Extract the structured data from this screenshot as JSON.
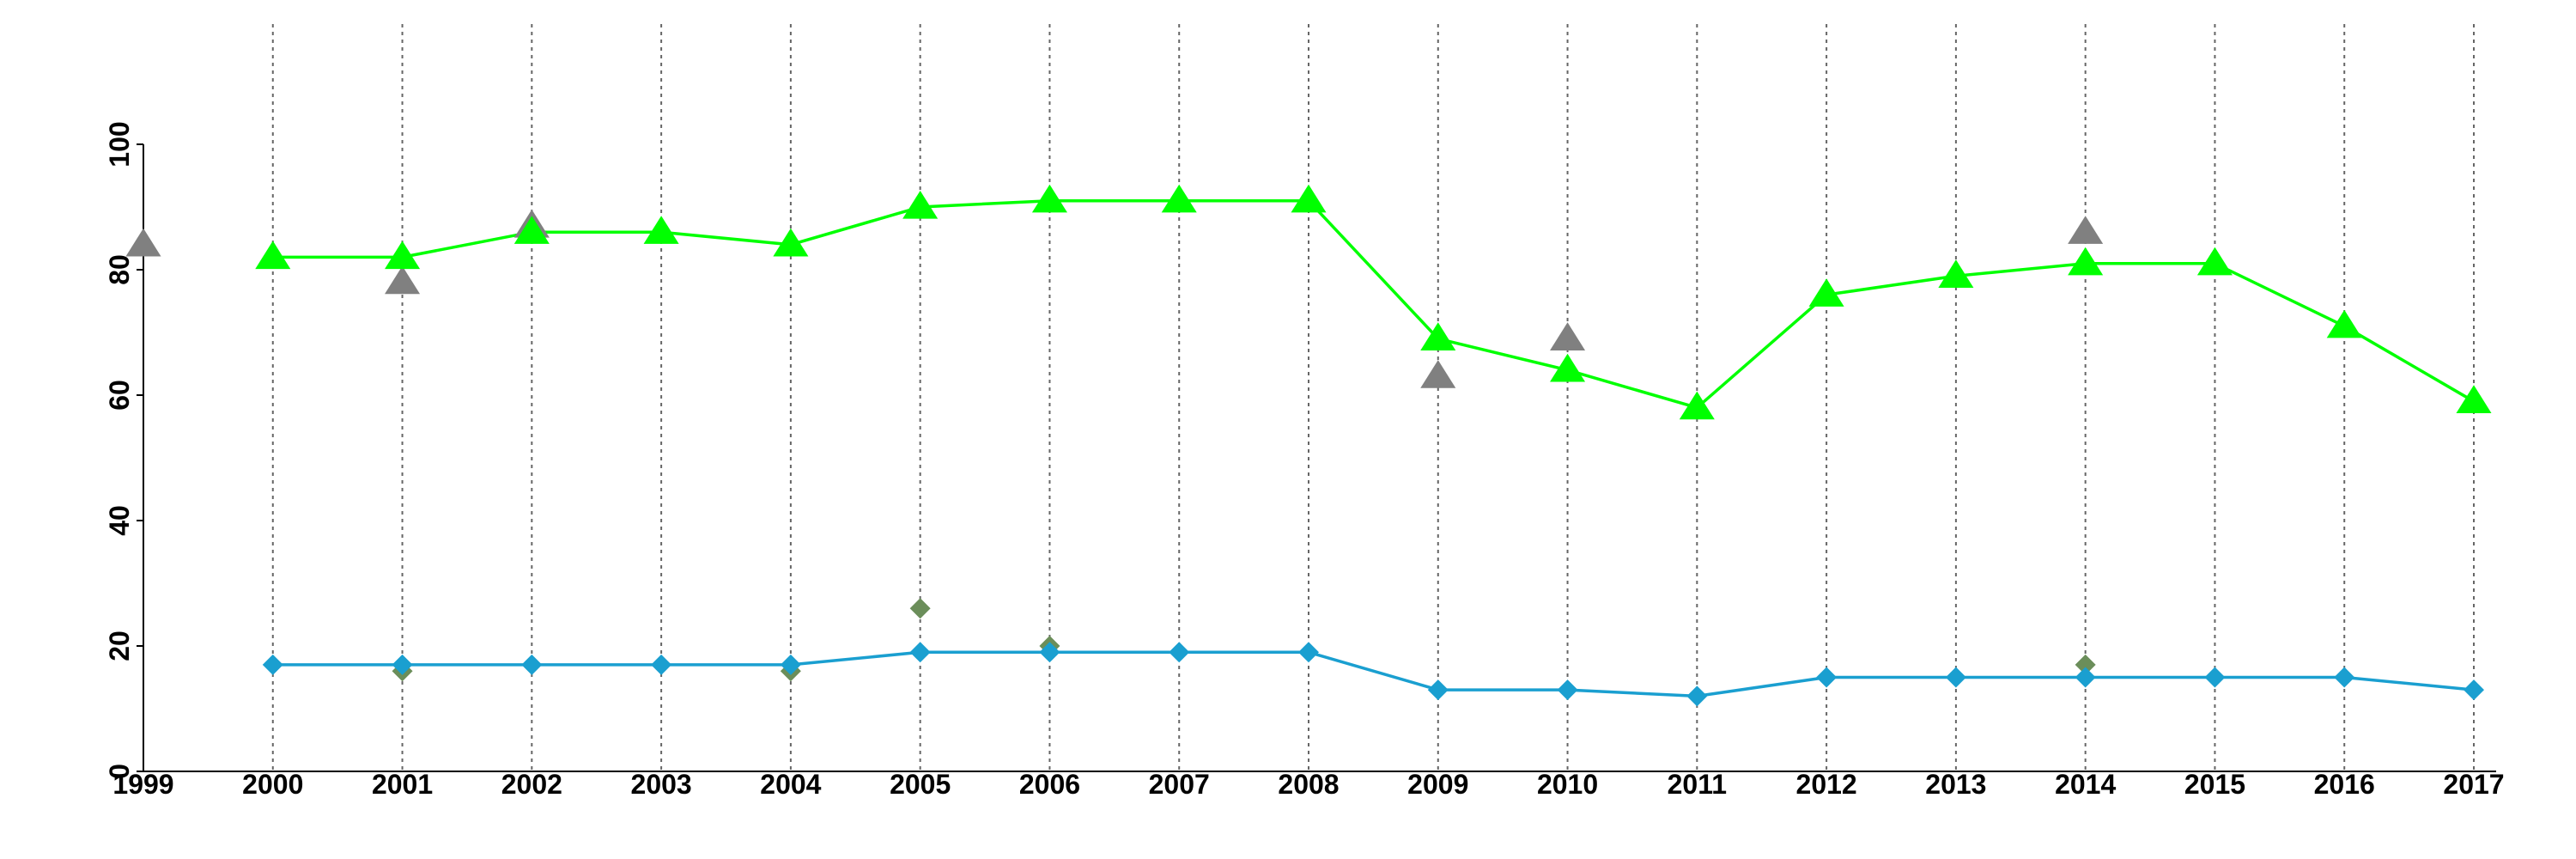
{
  "chart_data": {
    "type": "line",
    "title": "",
    "xlabel": "",
    "ylabel": "",
    "x": [
      2000,
      2001,
      2002,
      2003,
      2004,
      2005,
      2006,
      2007,
      2008,
      2009,
      2010,
      2011,
      2012,
      2013,
      2014,
      2015,
      2016,
      2017
    ],
    "xlim": [
      1999,
      2017
    ],
    "ylim": [
      0,
      100
    ],
    "x_ticks": [
      "1999",
      "2000",
      "2001",
      "2002",
      "2003",
      "2004",
      "2005",
      "2006",
      "2007",
      "2008",
      "2009",
      "2010",
      "2011",
      "2012",
      "2013",
      "2014",
      "2015",
      "2016",
      "2017"
    ],
    "y_ticks": [
      "0",
      "20",
      "40",
      "60",
      "80",
      "100"
    ],
    "grid": {
      "vertical": true,
      "horizontal": false,
      "style": "dotted"
    },
    "legend": "none",
    "series": [
      {
        "color": "#00ff00",
        "marker": "triangle",
        "values": [
          82,
          82,
          86,
          86,
          84,
          90,
          91,
          91,
          91,
          69,
          64,
          58,
          76,
          79,
          81,
          81,
          71,
          59
        ]
      },
      {
        "color": "#1a9fd0",
        "marker": "diamond",
        "values": [
          17,
          17,
          17,
          17,
          17,
          19,
          19,
          19,
          19,
          13,
          13,
          12,
          15,
          15,
          15,
          15,
          15,
          13
        ]
      }
    ],
    "extra_points": [
      {
        "color": "#808080",
        "marker": "triangle",
        "points": [
          {
            "x": 1999,
            "y": 84
          },
          {
            "x": 2001,
            "y": 78
          },
          {
            "x": 2002,
            "y": 87
          },
          {
            "x": 2009,
            "y": 63
          },
          {
            "x": 2010,
            "y": 69
          },
          {
            "x": 2014,
            "y": 86
          }
        ]
      },
      {
        "color": "#6b8e5a",
        "marker": "diamond",
        "points": [
          {
            "x": 2001,
            "y": 16
          },
          {
            "x": 2004,
            "y": 16
          },
          {
            "x": 2005,
            "y": 26
          },
          {
            "x": 2006,
            "y": 20
          },
          {
            "x": 2014,
            "y": 17
          }
        ]
      }
    ]
  }
}
